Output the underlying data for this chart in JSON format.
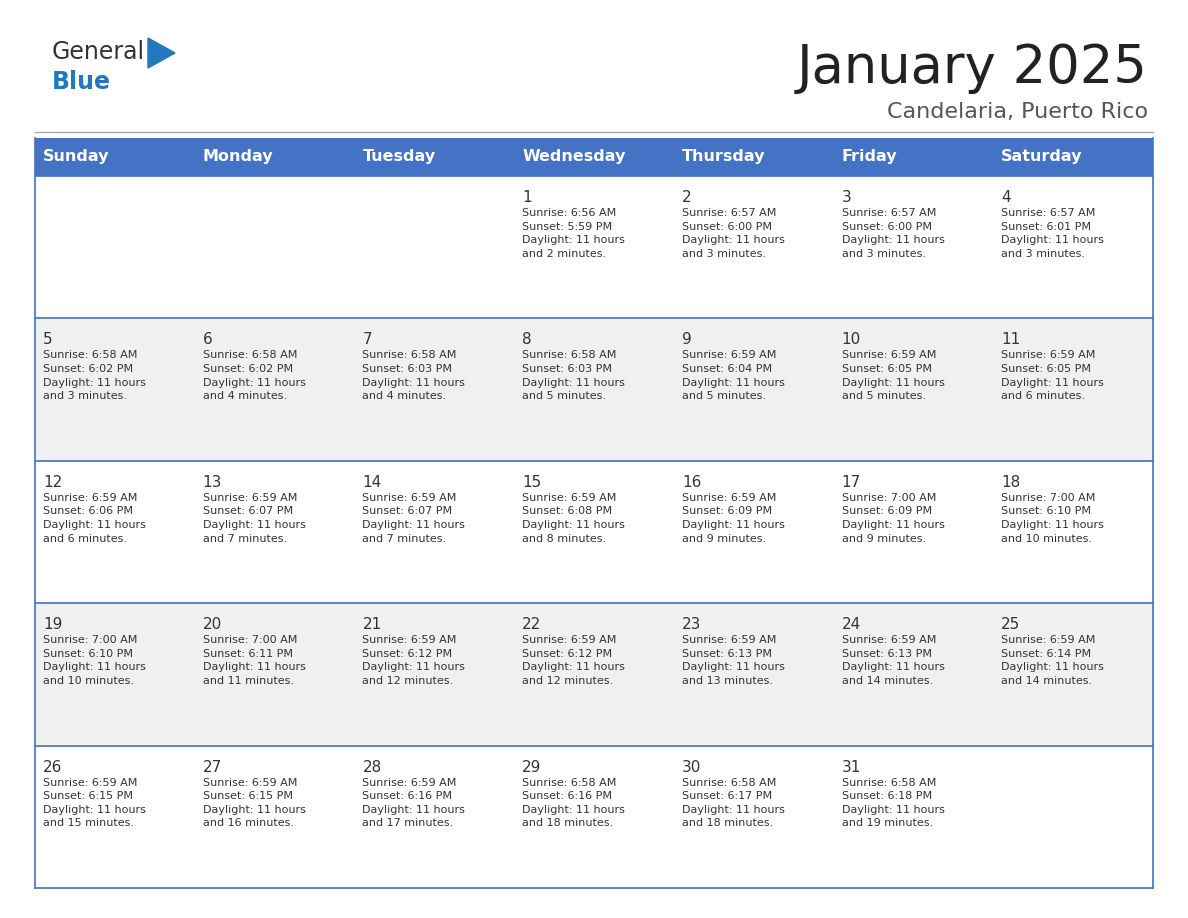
{
  "title": "January 2025",
  "subtitle": "Candelaria, Puerto Rico",
  "header_bg": "#4472C4",
  "header_text": "#FFFFFF",
  "row_bg_even": "#FFFFFF",
  "row_bg_odd": "#F0F0F0",
  "day_names": [
    "Sunday",
    "Monday",
    "Tuesday",
    "Wednesday",
    "Thursday",
    "Friday",
    "Saturday"
  ],
  "cell_border_color": "#4472C4",
  "text_color": "#333333",
  "logo_general_color": "#333333",
  "logo_blue_color": "#2278BF",
  "logo_triangle_color": "#2278BF",
  "separator_color": "#AAAAAA",
  "calendar": [
    [
      {
        "day": "",
        "info": ""
      },
      {
        "day": "",
        "info": ""
      },
      {
        "day": "",
        "info": ""
      },
      {
        "day": "1",
        "info": "Sunrise: 6:56 AM\nSunset: 5:59 PM\nDaylight: 11 hours\nand 2 minutes."
      },
      {
        "day": "2",
        "info": "Sunrise: 6:57 AM\nSunset: 6:00 PM\nDaylight: 11 hours\nand 3 minutes."
      },
      {
        "day": "3",
        "info": "Sunrise: 6:57 AM\nSunset: 6:00 PM\nDaylight: 11 hours\nand 3 minutes."
      },
      {
        "day": "4",
        "info": "Sunrise: 6:57 AM\nSunset: 6:01 PM\nDaylight: 11 hours\nand 3 minutes."
      }
    ],
    [
      {
        "day": "5",
        "info": "Sunrise: 6:58 AM\nSunset: 6:02 PM\nDaylight: 11 hours\nand 3 minutes."
      },
      {
        "day": "6",
        "info": "Sunrise: 6:58 AM\nSunset: 6:02 PM\nDaylight: 11 hours\nand 4 minutes."
      },
      {
        "day": "7",
        "info": "Sunrise: 6:58 AM\nSunset: 6:03 PM\nDaylight: 11 hours\nand 4 minutes."
      },
      {
        "day": "8",
        "info": "Sunrise: 6:58 AM\nSunset: 6:03 PM\nDaylight: 11 hours\nand 5 minutes."
      },
      {
        "day": "9",
        "info": "Sunrise: 6:59 AM\nSunset: 6:04 PM\nDaylight: 11 hours\nand 5 minutes."
      },
      {
        "day": "10",
        "info": "Sunrise: 6:59 AM\nSunset: 6:05 PM\nDaylight: 11 hours\nand 5 minutes."
      },
      {
        "day": "11",
        "info": "Sunrise: 6:59 AM\nSunset: 6:05 PM\nDaylight: 11 hours\nand 6 minutes."
      }
    ],
    [
      {
        "day": "12",
        "info": "Sunrise: 6:59 AM\nSunset: 6:06 PM\nDaylight: 11 hours\nand 6 minutes."
      },
      {
        "day": "13",
        "info": "Sunrise: 6:59 AM\nSunset: 6:07 PM\nDaylight: 11 hours\nand 7 minutes."
      },
      {
        "day": "14",
        "info": "Sunrise: 6:59 AM\nSunset: 6:07 PM\nDaylight: 11 hours\nand 7 minutes."
      },
      {
        "day": "15",
        "info": "Sunrise: 6:59 AM\nSunset: 6:08 PM\nDaylight: 11 hours\nand 8 minutes."
      },
      {
        "day": "16",
        "info": "Sunrise: 6:59 AM\nSunset: 6:09 PM\nDaylight: 11 hours\nand 9 minutes."
      },
      {
        "day": "17",
        "info": "Sunrise: 7:00 AM\nSunset: 6:09 PM\nDaylight: 11 hours\nand 9 minutes."
      },
      {
        "day": "18",
        "info": "Sunrise: 7:00 AM\nSunset: 6:10 PM\nDaylight: 11 hours\nand 10 minutes."
      }
    ],
    [
      {
        "day": "19",
        "info": "Sunrise: 7:00 AM\nSunset: 6:10 PM\nDaylight: 11 hours\nand 10 minutes."
      },
      {
        "day": "20",
        "info": "Sunrise: 7:00 AM\nSunset: 6:11 PM\nDaylight: 11 hours\nand 11 minutes."
      },
      {
        "day": "21",
        "info": "Sunrise: 6:59 AM\nSunset: 6:12 PM\nDaylight: 11 hours\nand 12 minutes."
      },
      {
        "day": "22",
        "info": "Sunrise: 6:59 AM\nSunset: 6:12 PM\nDaylight: 11 hours\nand 12 minutes."
      },
      {
        "day": "23",
        "info": "Sunrise: 6:59 AM\nSunset: 6:13 PM\nDaylight: 11 hours\nand 13 minutes."
      },
      {
        "day": "24",
        "info": "Sunrise: 6:59 AM\nSunset: 6:13 PM\nDaylight: 11 hours\nand 14 minutes."
      },
      {
        "day": "25",
        "info": "Sunrise: 6:59 AM\nSunset: 6:14 PM\nDaylight: 11 hours\nand 14 minutes."
      }
    ],
    [
      {
        "day": "26",
        "info": "Sunrise: 6:59 AM\nSunset: 6:15 PM\nDaylight: 11 hours\nand 15 minutes."
      },
      {
        "day": "27",
        "info": "Sunrise: 6:59 AM\nSunset: 6:15 PM\nDaylight: 11 hours\nand 16 minutes."
      },
      {
        "day": "28",
        "info": "Sunrise: 6:59 AM\nSunset: 6:16 PM\nDaylight: 11 hours\nand 17 minutes."
      },
      {
        "day": "29",
        "info": "Sunrise: 6:58 AM\nSunset: 6:16 PM\nDaylight: 11 hours\nand 18 minutes."
      },
      {
        "day": "30",
        "info": "Sunrise: 6:58 AM\nSunset: 6:17 PM\nDaylight: 11 hours\nand 18 minutes."
      },
      {
        "day": "31",
        "info": "Sunrise: 6:58 AM\nSunset: 6:18 PM\nDaylight: 11 hours\nand 19 minutes."
      },
      {
        "day": "",
        "info": ""
      }
    ]
  ]
}
